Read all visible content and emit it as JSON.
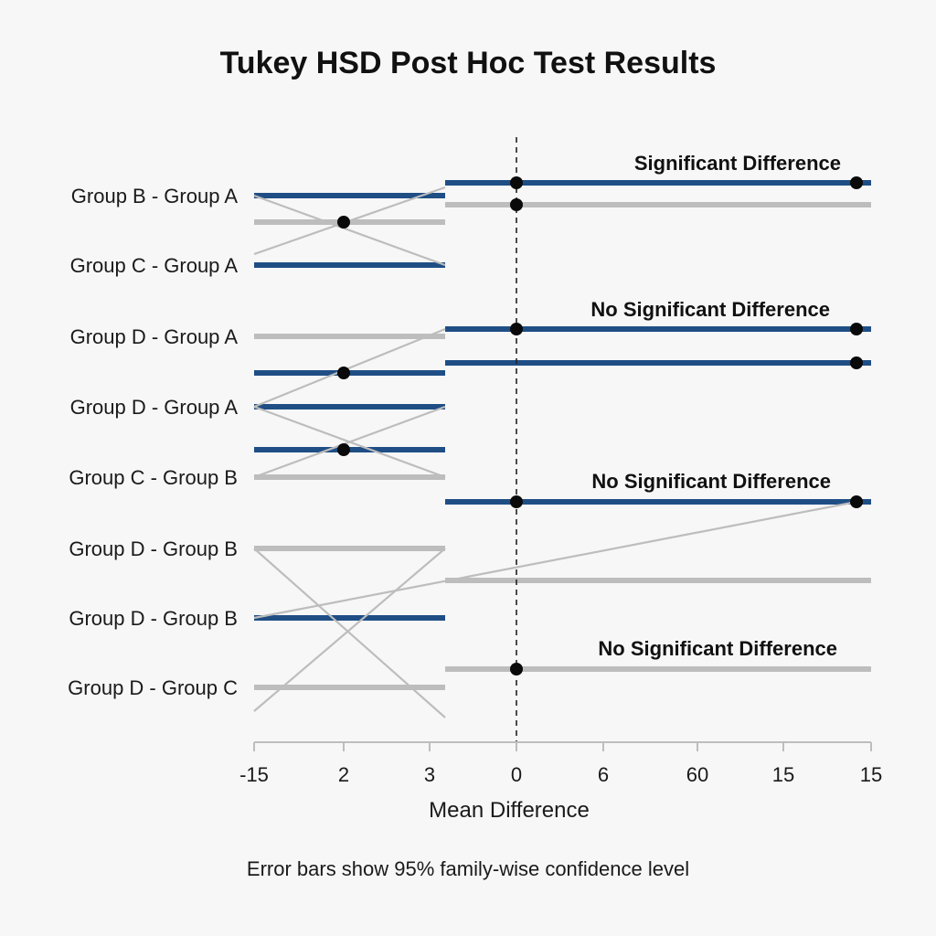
{
  "chart_data": {
    "type": "scatter",
    "title": "Tukey HSD Post Hoc Test Results",
    "xlabel": "Mean Difference",
    "ylabel": "",
    "caption": "Error bars show 95% family-wise confidence level",
    "comparisons": [
      "Group B - Group A",
      "Group C - Group A",
      "Group D - Group A",
      "Group D - Group A",
      "Group C - Group B",
      "Group D - Group B",
      "Group D - Group B",
      "Group D - Group C"
    ],
    "x_tick_labels": [
      "-15",
      "2",
      "3",
      "0",
      "6",
      "60",
      "15",
      "15"
    ],
    "annotations": [
      "Significant Difference",
      "No Significant Difference",
      "No Significant Difference",
      "No Significant Difference"
    ],
    "colors": {
      "significant": "#1f4e85",
      "not_significant": "#bdbdbd",
      "point": "#0a0a0a",
      "reference_line": "#222222"
    }
  }
}
